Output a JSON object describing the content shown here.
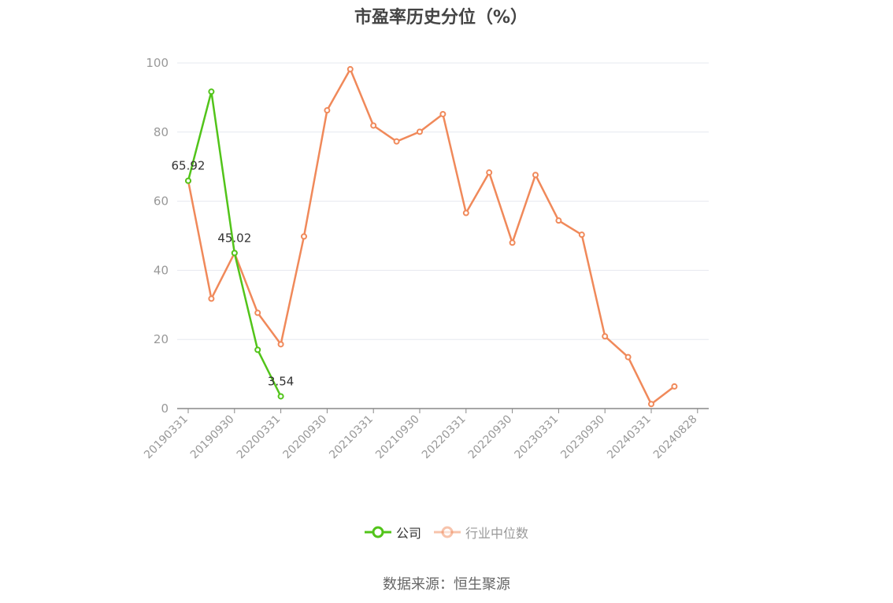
{
  "chart_data": {
    "type": "line",
    "title": "市盈率历史分位（%）",
    "xlabel": "",
    "ylabel": "",
    "ylim": [
      0,
      100
    ],
    "yticks": [
      0,
      20,
      40,
      60,
      80,
      100
    ],
    "grid": true,
    "legend_position": "bottom-center",
    "x_tick_labels": [
      "20190331",
      "20190930",
      "20200331",
      "20200930",
      "20210331",
      "20210930",
      "20220331",
      "20220930",
      "20230331",
      "20230930",
      "20240331",
      "20240828"
    ],
    "series": [
      {
        "name": "公司",
        "color": "#52c41a",
        "x": [
          0,
          1,
          2,
          3,
          4
        ],
        "values": [
          65.92,
          91.7,
          45.02,
          17.0,
          3.54
        ],
        "labels": {
          "0": "65.92",
          "2": "45.02",
          "4": "3.54"
        }
      },
      {
        "name": "行业中位数",
        "color": "#f0895a",
        "x": [
          0,
          1,
          2,
          3,
          4,
          5,
          6,
          7,
          8,
          9,
          10,
          11,
          12,
          13,
          14,
          15,
          16,
          17,
          18,
          19,
          20,
          21
        ],
        "values": [
          65.9,
          31.8,
          45.0,
          27.7,
          18.6,
          49.8,
          86.3,
          98.2,
          81.9,
          77.3,
          80.1,
          85.2,
          56.6,
          68.3,
          48.0,
          67.6,
          54.4,
          50.3,
          20.9,
          14.9,
          1.3,
          6.4
        ]
      }
    ]
  },
  "source": "数据来源：恒生聚源"
}
